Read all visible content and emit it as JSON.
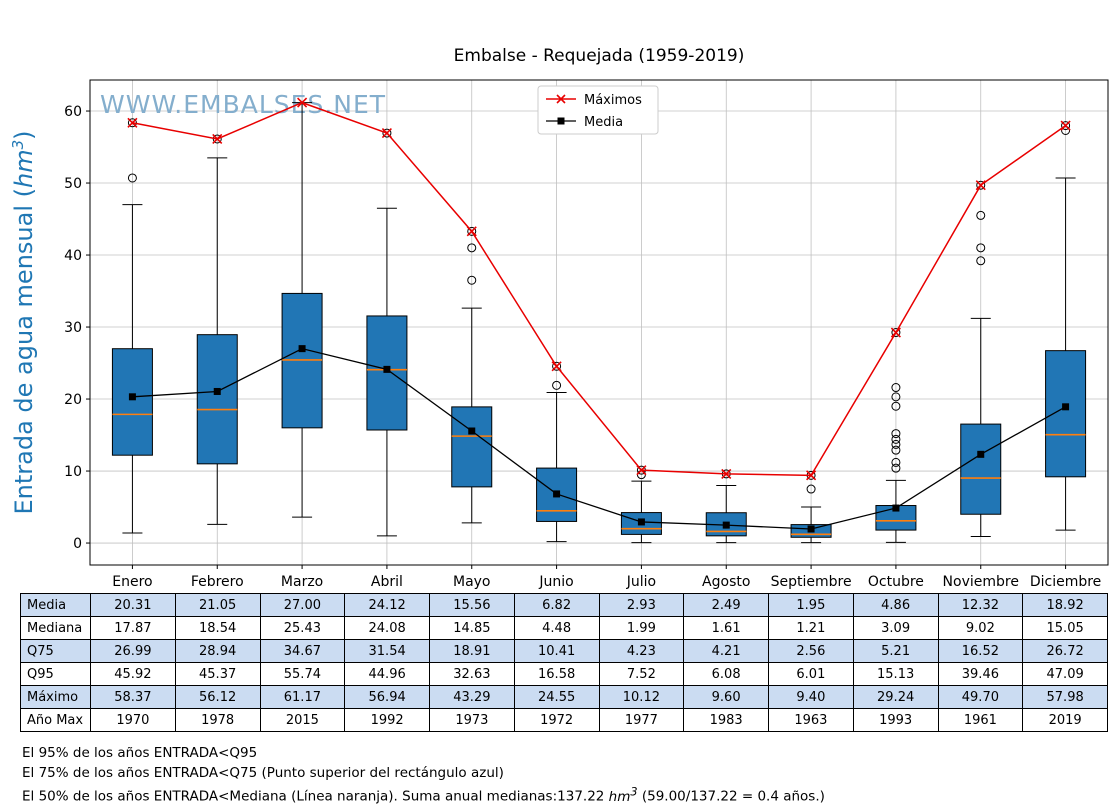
{
  "chart_data": {
    "type": "boxplot",
    "title": "Embalse - Requejada (1959-2019)",
    "watermark": "WWW.EMBALSES.NET",
    "ylabel_parts": [
      "Entrada de agua mensual (",
      "hm",
      "3",
      ")"
    ],
    "ylim": [
      -3.05,
      64.31
    ],
    "yticks": [
      0,
      10,
      20,
      30,
      40,
      50,
      60
    ],
    "grid": true,
    "legend_position": "upper center",
    "categories": [
      "Enero",
      "Febrero",
      "Marzo",
      "Abril",
      "Mayo",
      "Junio",
      "Julio",
      "Agosto",
      "Septiembre",
      "Octubre",
      "Noviembre",
      "Diciembre"
    ],
    "series": [
      {
        "name": "Máximos",
        "marker": "x",
        "color": "#e80000",
        "values": [
          58.37,
          56.12,
          61.17,
          56.94,
          43.29,
          24.55,
          10.12,
          9.6,
          9.4,
          29.24,
          49.7,
          57.98
        ]
      },
      {
        "name": "Media",
        "marker": "square",
        "color": "#000000",
        "values": [
          20.31,
          21.05,
          27.0,
          24.12,
          15.56,
          6.82,
          2.93,
          2.49,
          1.95,
          4.86,
          12.32,
          18.92
        ]
      }
    ],
    "boxes": [
      {
        "q1": 12.2,
        "median": 17.87,
        "q3": 26.99,
        "whisker_low": 1.4,
        "whisker_high": 47.0,
        "fliers": [
          50.7,
          58.37
        ]
      },
      {
        "q1": 11.0,
        "median": 18.54,
        "q3": 28.94,
        "whisker_low": 2.6,
        "whisker_high": 53.5,
        "fliers": [
          56.12
        ]
      },
      {
        "q1": 16.0,
        "median": 25.43,
        "q3": 34.67,
        "whisker_low": 3.6,
        "whisker_high": 61.17,
        "fliers": []
      },
      {
        "q1": 15.7,
        "median": 24.08,
        "q3": 31.54,
        "whisker_low": 1.0,
        "whisker_high": 46.5,
        "fliers": [
          56.94
        ]
      },
      {
        "q1": 7.8,
        "median": 14.85,
        "q3": 18.91,
        "whisker_low": 2.8,
        "whisker_high": 32.63,
        "fliers": [
          36.5,
          41.0,
          43.29
        ]
      },
      {
        "q1": 3.0,
        "median": 4.48,
        "q3": 10.41,
        "whisker_low": 0.2,
        "whisker_high": 20.9,
        "fliers": [
          21.9,
          24.55
        ]
      },
      {
        "q1": 1.2,
        "median": 1.99,
        "q3": 4.23,
        "whisker_low": 0.05,
        "whisker_high": 8.6,
        "fliers": [
          9.5,
          10.12
        ]
      },
      {
        "q1": 1.0,
        "median": 1.61,
        "q3": 4.21,
        "whisker_low": 0.05,
        "whisker_high": 8.0,
        "fliers": [
          9.6
        ]
      },
      {
        "q1": 0.8,
        "median": 1.21,
        "q3": 2.56,
        "whisker_low": 0.05,
        "whisker_high": 5.0,
        "fliers": [
          7.5,
          9.4
        ]
      },
      {
        "q1": 1.8,
        "median": 3.09,
        "q3": 5.21,
        "whisker_low": 0.1,
        "whisker_high": 8.7,
        "fliers": [
          10.4,
          11.2,
          12.9,
          13.7,
          14.4,
          15.2,
          19.0,
          20.3,
          21.6,
          29.24
        ]
      },
      {
        "q1": 4.0,
        "median": 9.02,
        "q3": 16.52,
        "whisker_low": 0.9,
        "whisker_high": 31.2,
        "fliers": [
          39.2,
          41.0,
          45.5,
          49.7
        ]
      },
      {
        "q1": 9.2,
        "median": 15.05,
        "q3": 26.72,
        "whisker_low": 1.8,
        "whisker_high": 50.7,
        "fliers": [
          57.3,
          57.98
        ]
      }
    ],
    "colors": {
      "box_fill": "#2176b5",
      "median_line": "#ff7f0e",
      "max_line": "#e80000",
      "mean_line": "#000000",
      "grid": "#c0c0c0",
      "watermark": "#84aecd",
      "ylabel": "#1f77b4",
      "axis": "#000000"
    }
  },
  "table": {
    "row_labels": [
      "Media",
      "Mediana",
      "Q75",
      "Q95",
      "Máximo",
      "Año Max"
    ],
    "rows": [
      [
        "20.31",
        "21.05",
        "27.00",
        "24.12",
        "15.56",
        "6.82",
        "2.93",
        "2.49",
        "1.95",
        "4.86",
        "12.32",
        "18.92"
      ],
      [
        "17.87",
        "18.54",
        "25.43",
        "24.08",
        "14.85",
        "4.48",
        "1.99",
        "1.61",
        "1.21",
        "3.09",
        "9.02",
        "15.05"
      ],
      [
        "26.99",
        "28.94",
        "34.67",
        "31.54",
        "18.91",
        "10.41",
        "4.23",
        "4.21",
        "2.56",
        "5.21",
        "16.52",
        "26.72"
      ],
      [
        "45.92",
        "45.37",
        "55.74",
        "44.96",
        "32.63",
        "16.58",
        "7.52",
        "6.08",
        "6.01",
        "15.13",
        "39.46",
        "47.09"
      ],
      [
        "58.37",
        "56.12",
        "61.17",
        "56.94",
        "43.29",
        "24.55",
        "10.12",
        "9.60",
        "9.40",
        "29.24",
        "49.70",
        "57.98"
      ],
      [
        "1970",
        "1978",
        "2015",
        "1992",
        "1973",
        "1972",
        "1977",
        "1983",
        "1963",
        "1993",
        "1961",
        "2019"
      ]
    ],
    "shaded_rows": [
      0,
      2,
      4
    ],
    "shade_color": "#cbdcf2"
  },
  "footer": {
    "line1": "El 95% de los años ENTRADA<Q95",
    "line2": "El 75% de los años ENTRADA<Q75 (Punto superior del rectángulo azul)",
    "line3_pre": "El 50% de los años ENTRADA<Mediana (Línea naranja). Suma anual medianas:137.22 ",
    "line3_unit": "hm",
    "line3_sup": "3",
    "line3_post": " (59.00/137.22 = 0.4 años.)"
  }
}
